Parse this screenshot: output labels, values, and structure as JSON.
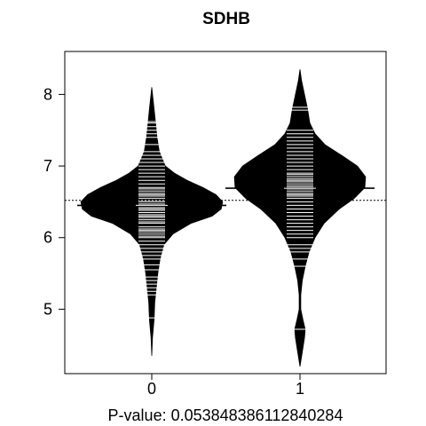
{
  "chart_data": {
    "type": "beanplot",
    "title": "SDHB",
    "xlabel": "P-value: 0.053848386112840284",
    "ylabel": "",
    "categories": [
      "0",
      "1"
    ],
    "y_ticks": [
      "5",
      "6",
      "7",
      "8"
    ],
    "ylim": [
      4.1,
      8.6
    ],
    "overall_mean": 6.52,
    "series": [
      {
        "category": "0",
        "mean": 6.45,
        "density": [
          [
            4.35,
            0.0
          ],
          [
            4.6,
            0.01
          ],
          [
            4.85,
            0.03
          ],
          [
            5.1,
            0.04
          ],
          [
            5.3,
            0.06
          ],
          [
            5.5,
            0.08
          ],
          [
            5.7,
            0.11
          ],
          [
            5.9,
            0.16
          ],
          [
            6.05,
            0.28
          ],
          [
            6.2,
            0.52
          ],
          [
            6.3,
            0.8
          ],
          [
            6.4,
            0.92
          ],
          [
            6.5,
            0.94
          ],
          [
            6.6,
            0.85
          ],
          [
            6.7,
            0.68
          ],
          [
            6.8,
            0.47
          ],
          [
            6.9,
            0.3
          ],
          [
            7.0,
            0.18
          ],
          [
            7.2,
            0.1
          ],
          [
            7.4,
            0.07
          ],
          [
            7.6,
            0.05
          ],
          [
            7.8,
            0.03
          ],
          [
            8.1,
            0.0
          ]
        ],
        "points": [
          4.88,
          5.2,
          5.25,
          5.3,
          5.35,
          5.4,
          5.45,
          5.55,
          5.62,
          5.7,
          5.75,
          5.8,
          5.85,
          5.9,
          5.95,
          6.0,
          6.02,
          6.05,
          6.08,
          6.1,
          6.12,
          6.15,
          6.2,
          6.22,
          6.25,
          6.28,
          6.3,
          6.32,
          6.35,
          6.38,
          6.4,
          6.42,
          6.45,
          6.47,
          6.5,
          6.52,
          6.55,
          6.58,
          6.6,
          6.62,
          6.65,
          6.68,
          6.7,
          6.75,
          6.8,
          6.85,
          6.9,
          6.95,
          7.0,
          7.05,
          7.1,
          7.15,
          7.2,
          7.3,
          7.4,
          7.45,
          7.5,
          7.55,
          7.6,
          7.62
        ]
      },
      {
        "category": "1",
        "mean": 6.69,
        "density": [
          [
            4.2,
            0.0
          ],
          [
            4.4,
            0.03
          ],
          [
            4.6,
            0.06
          ],
          [
            4.72,
            0.07
          ],
          [
            4.85,
            0.04
          ],
          [
            5.0,
            0.01
          ],
          [
            5.2,
            0.01
          ],
          [
            5.4,
            0.03
          ],
          [
            5.6,
            0.07
          ],
          [
            5.8,
            0.12
          ],
          [
            6.0,
            0.2
          ],
          [
            6.2,
            0.32
          ],
          [
            6.4,
            0.52
          ],
          [
            6.55,
            0.72
          ],
          [
            6.7,
            0.86
          ],
          [
            6.85,
            0.87
          ],
          [
            7.0,
            0.76
          ],
          [
            7.15,
            0.55
          ],
          [
            7.3,
            0.33
          ],
          [
            7.45,
            0.2
          ],
          [
            7.6,
            0.13
          ],
          [
            7.8,
            0.1
          ],
          [
            8.0,
            0.06
          ],
          [
            8.2,
            0.02
          ],
          [
            8.35,
            0.0
          ]
        ],
        "points": [
          4.72,
          5.6,
          5.7,
          5.8,
          5.85,
          5.9,
          6.0,
          6.05,
          6.1,
          6.15,
          6.2,
          6.25,
          6.3,
          6.35,
          6.4,
          6.45,
          6.5,
          6.55,
          6.58,
          6.6,
          6.62,
          6.65,
          6.68,
          6.7,
          6.72,
          6.75,
          6.78,
          6.8,
          6.82,
          6.85,
          6.88,
          6.9,
          6.95,
          7.0,
          7.05,
          7.1,
          7.15,
          7.2,
          7.25,
          7.3,
          7.35,
          7.4,
          7.45,
          7.5,
          7.78,
          7.82
        ]
      }
    ],
    "colors": {
      "bean_fill": "#000000",
      "point_line": "#ffffff",
      "axis": "#000000"
    },
    "overall_mean_line_style": "dotted",
    "grid": false,
    "legend": "none"
  }
}
